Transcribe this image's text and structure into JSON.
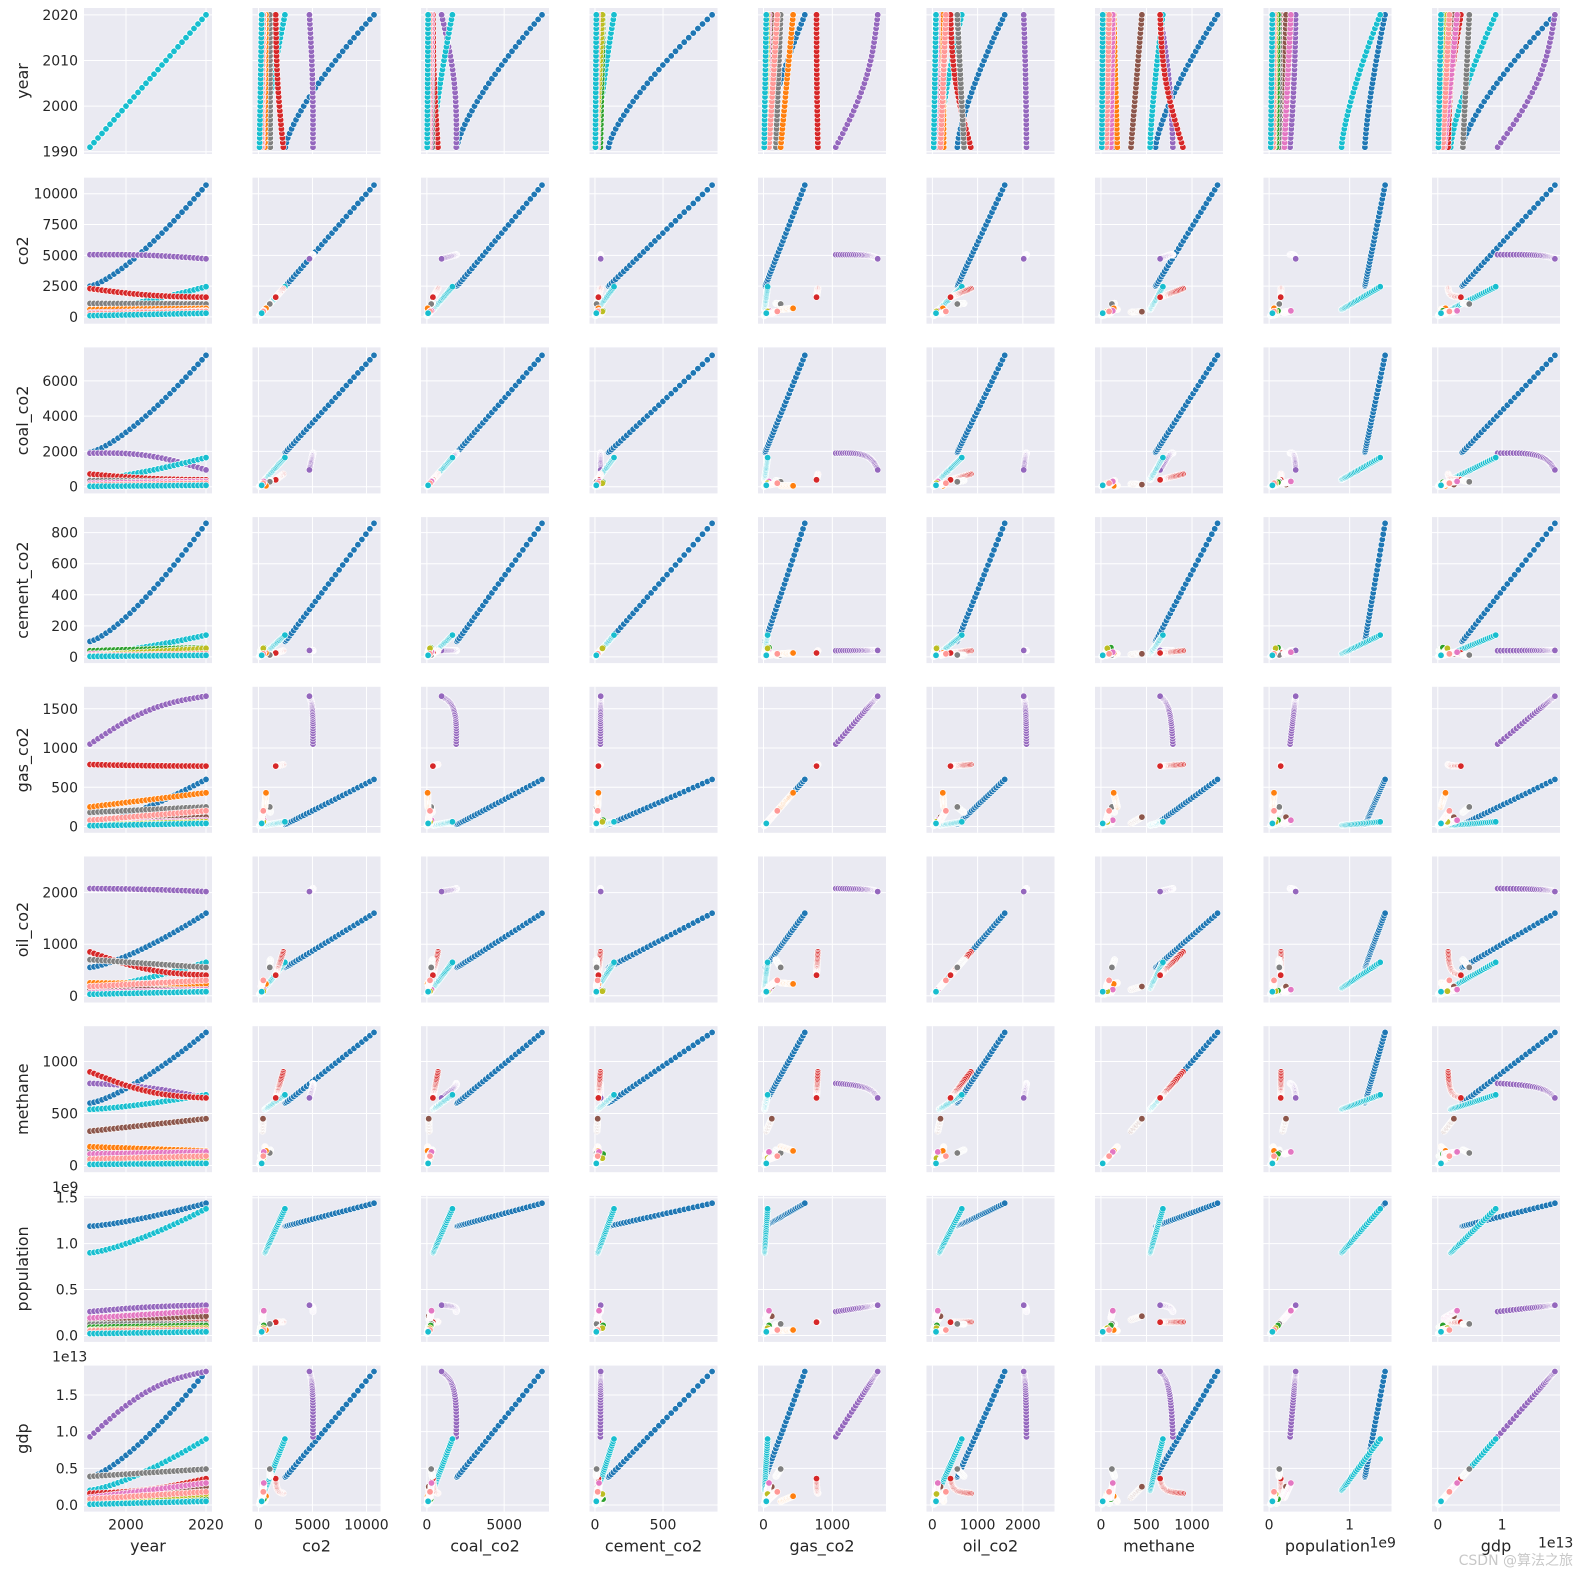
{
  "chart_data": {
    "type": "scatter",
    "variables": [
      "year",
      "co2",
      "coal_co2",
      "cement_co2",
      "gas_co2",
      "oil_co2",
      "methane",
      "population",
      "gdp"
    ],
    "axis_labels": [
      "year",
      "co2",
      "coal_co2",
      "cement_co2",
      "gas_co2",
      "oil_co2",
      "methane",
      "population",
      "gdp"
    ],
    "axes": [
      {
        "name": "year",
        "lim": [
          1989.5,
          2021.5
        ],
        "ticks": [
          1990,
          2000,
          2010,
          2020
        ],
        "tick_labels": [
          "1990",
          "2000",
          "2010",
          "2020"
        ],
        "show_on_x": [
          2000,
          2020
        ],
        "show_on_x_labels": [
          "2000",
          "2020"
        ],
        "offset": ""
      },
      {
        "name": "co2",
        "lim": [
          -550,
          11300
        ],
        "ticks": [
          0,
          2500,
          5000,
          7500,
          10000
        ],
        "tick_labels": [
          "0",
          "2500",
          "5000",
          "7500",
          "10000"
        ],
        "show_on_x": [
          0,
          5000,
          10000
        ],
        "show_on_x_labels": [
          "0",
          "5000",
          "10000"
        ],
        "offset": ""
      },
      {
        "name": "coal_co2",
        "lim": [
          -380,
          7900
        ],
        "ticks": [
          0,
          2000,
          4000,
          6000
        ],
        "tick_labels": [
          "0",
          "2000",
          "4000",
          "6000"
        ],
        "show_on_x": [
          0,
          5000
        ],
        "show_on_x_labels": [
          "0",
          "5000"
        ],
        "offset": ""
      },
      {
        "name": "cement_co2",
        "lim": [
          -40,
          900
        ],
        "ticks": [
          0,
          200,
          400,
          600,
          800
        ],
        "tick_labels": [
          "0",
          "200",
          "400",
          "600",
          "800"
        ],
        "show_on_x": [
          0,
          500
        ],
        "show_on_x_labels": [
          "0",
          "500"
        ],
        "offset": ""
      },
      {
        "name": "gas_co2",
        "lim": [
          -80,
          1780
        ],
        "ticks": [
          0,
          500,
          1000,
          1500
        ],
        "tick_labels": [
          "0",
          "500",
          "1000",
          "1500"
        ],
        "show_on_x": [
          0,
          1000
        ],
        "show_on_x_labels": [
          "0",
          "1000"
        ],
        "offset": ""
      },
      {
        "name": "oil_co2",
        "lim": [
          -130,
          2700
        ],
        "ticks": [
          0,
          1000,
          2000
        ],
        "tick_labels": [
          "0",
          "1000",
          "2000"
        ],
        "show_on_x": [
          0,
          1000,
          2000
        ],
        "show_on_x_labels": [
          "0",
          "1000",
          "2000"
        ],
        "offset": ""
      },
      {
        "name": "methane",
        "lim": [
          -65,
          1340
        ],
        "ticks": [
          0,
          500,
          1000
        ],
        "tick_labels": [
          "0",
          "500",
          "1000"
        ],
        "show_on_x": [
          0,
          500,
          1000
        ],
        "show_on_x_labels": [
          "0",
          "500",
          "1000"
        ],
        "offset": ""
      },
      {
        "name": "population",
        "lim": [
          -0.07,
          1.52
        ],
        "ticks": [
          0,
          0.5,
          1.0,
          1.5
        ],
        "tick_labels": [
          "0.0",
          "0.5",
          "1.0",
          "1.5"
        ],
        "show_on_x": [
          0,
          1
        ],
        "show_on_x_labels": [
          "0",
          "1"
        ],
        "offset": "1e9"
      },
      {
        "name": "gdp",
        "lim": [
          -0.09,
          1.9
        ],
        "ticks": [
          0,
          0.5,
          1.0,
          1.5
        ],
        "tick_labels": [
          "0.0",
          "0.5",
          "1.0",
          "1.5"
        ],
        "show_on_x": [
          0,
          1
        ],
        "show_on_x_labels": [
          "0",
          "1"
        ],
        "offset": "1e13"
      }
    ],
    "hue_palette": [
      "#1f77b4",
      "#ff7f0e",
      "#2ca02c",
      "#d62728",
      "#9467bd",
      "#8c564b",
      "#e377c2",
      "#7f7f7f",
      "#bcbd22",
      "#17becf"
    ],
    "years": {
      "start": 1991,
      "end": 2020
    },
    "series": [
      {
        "color": "#1f77b4",
        "co2": [
          2500,
          10700
        ],
        "coal_co2": [
          1950,
          7450
        ],
        "cement_co2": [
          100,
          860
        ],
        "gas_co2": [
          25,
          600
        ],
        "oil_co2": [
          550,
          1600
        ],
        "methane": [
          600,
          1280
        ],
        "population": [
          1.19,
          1.44
        ],
        "gdp": [
          0.38,
          1.82
        ],
        "curve": "accel"
      },
      {
        "color": "#9467bd",
        "co2": [
          5050,
          4720
        ],
        "coal_co2": [
          1900,
          950
        ],
        "cement_co2": [
          40,
          42
        ],
        "gas_co2": [
          1050,
          1660
        ],
        "oil_co2": [
          2080,
          2020
        ],
        "methane": [
          790,
          650
        ],
        "population": [
          0.26,
          0.33
        ],
        "gdp": [
          0.93,
          1.82
        ],
        "curve": "hump"
      },
      {
        "color": "#17becf",
        "co2": [
          600,
          2450
        ],
        "coal_co2": [
          400,
          1650
        ],
        "cement_co2": [
          20,
          140
        ],
        "gas_co2": [
          15,
          60
        ],
        "oil_co2": [
          150,
          650
        ],
        "methane": [
          540,
          680
        ],
        "population": [
          0.9,
          1.38
        ],
        "gdp": [
          0.2,
          0.9
        ],
        "curve": "accel"
      },
      {
        "color": "#d62728",
        "co2": [
          2300,
          1600
        ],
        "coal_co2": [
          720,
          390
        ],
        "cement_co2": [
          40,
          25
        ],
        "gas_co2": [
          790,
          770
        ],
        "oil_co2": [
          850,
          400
        ],
        "methane": [
          900,
          650
        ],
        "population": [
          0.148,
          0.144
        ],
        "gdp": [
          0.16,
          0.36
        ],
        "curve": "dip"
      },
      {
        "color": "#8c564b",
        "co2": [
          380,
          420
        ],
        "coal_co2": [
          150,
          120
        ],
        "cement_co2": [
          15,
          20
        ],
        "gas_co2": [
          40,
          120
        ],
        "oil_co2": [
          120,
          180
        ],
        "methane": [
          330,
          450
        ],
        "population": [
          0.17,
          0.21
        ],
        "gdp": [
          0.1,
          0.25
        ],
        "curve": "lin"
      },
      {
        "color": "#7f7f7f",
        "co2": [
          1100,
          1050
        ],
        "coal_co2": [
          350,
          280
        ],
        "cement_co2": [
          10,
          12
        ],
        "gas_co2": [
          180,
          250
        ],
        "oil_co2": [
          700,
          550
        ],
        "methane": [
          150,
          120
        ],
        "population": [
          0.124,
          0.126
        ],
        "gdp": [
          0.39,
          0.49
        ],
        "curve": "lin"
      },
      {
        "color": "#ff7f0e",
        "co2": [
          600,
          700
        ],
        "coal_co2": [
          60,
          50
        ],
        "cement_co2": [
          20,
          25
        ],
        "gas_co2": [
          250,
          430
        ],
        "oil_co2": [
          250,
          230
        ],
        "methane": [
          180,
          140
        ],
        "population": [
          0.05,
          0.06
        ],
        "gdp": [
          0.05,
          0.12
        ],
        "curve": "lin"
      },
      {
        "color": "#2ca02c",
        "co2": [
          200,
          500
        ],
        "coal_co2": [
          100,
          250
        ],
        "cement_co2": [
          40,
          60
        ],
        "gas_co2": [
          30,
          80
        ],
        "oil_co2": [
          50,
          100
        ],
        "methane": [
          90,
          110
        ],
        "population": [
          0.09,
          0.11
        ],
        "gdp": [
          0.02,
          0.08
        ],
        "curve": "lin"
      },
      {
        "color": "#e377c2",
        "co2": [
          350,
          500
        ],
        "coal_co2": [
          200,
          300
        ],
        "cement_co2": [
          20,
          30
        ],
        "gas_co2": [
          30,
          80
        ],
        "oil_co2": [
          60,
          120
        ],
        "methane": [
          110,
          130
        ],
        "population": [
          0.19,
          0.27
        ],
        "gdp": [
          0.1,
          0.3
        ],
        "curve": "lin"
      },
      {
        "color": "#bcbd22",
        "co2": [
          150,
          450
        ],
        "coal_co2": [
          50,
          200
        ],
        "cement_co2": [
          10,
          55
        ],
        "gas_co2": [
          20,
          60
        ],
        "oil_co2": [
          30,
          90
        ],
        "methane": [
          40,
          70
        ],
        "population": [
          0.06,
          0.08
        ],
        "gdp": [
          0.05,
          0.15
        ],
        "curve": "lin"
      },
      {
        "color": "#ff9896",
        "co2": [
          250,
          450
        ],
        "coal_co2": [
          100,
          200
        ],
        "cement_co2": [
          10,
          20
        ],
        "gas_co2": [
          80,
          200
        ],
        "oil_co2": [
          180,
          300
        ],
        "methane": [
          60,
          90
        ],
        "population": [
          0.05,
          0.06
        ],
        "gdp": [
          0.08,
          0.18
        ],
        "curve": "lin"
      },
      {
        "color": "#17becf",
        "co2": [
          100,
          300
        ],
        "coal_co2": [
          20,
          80
        ],
        "cement_co2": [
          3,
          10
        ],
        "gas_co2": [
          10,
          40
        ],
        "oil_co2": [
          30,
          80
        ],
        "methane": [
          10,
          20
        ],
        "population": [
          0.02,
          0.04
        ],
        "gdp": [
          0.01,
          0.05
        ],
        "curve": "lin"
      }
    ]
  },
  "watermark": "CSDN @算法之旅"
}
